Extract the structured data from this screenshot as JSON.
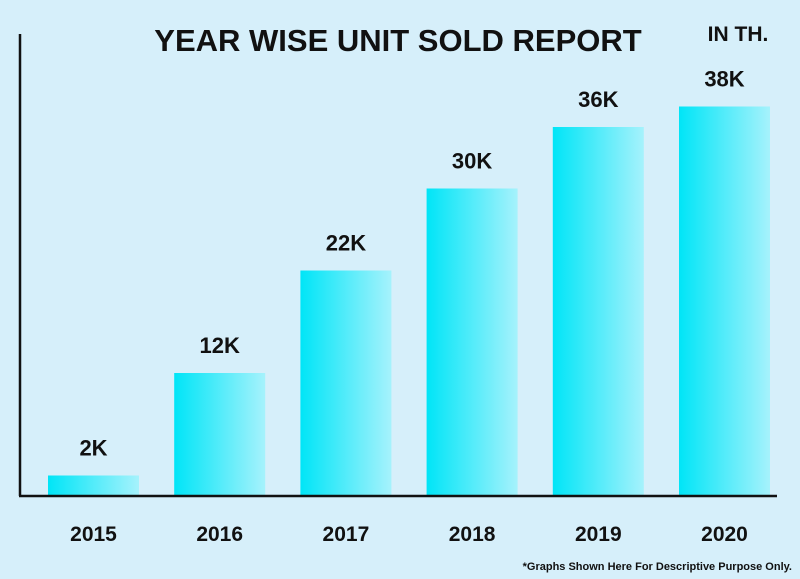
{
  "chart_data": {
    "type": "bar",
    "title": "YEAR WISE UNIT SOLD REPORT",
    "unit_label": "IN TH.",
    "categories": [
      "2015",
      "2016",
      "2017",
      "2018",
      "2019",
      "2020"
    ],
    "values": [
      2,
      12,
      22,
      30,
      36,
      38
    ],
    "data_labels": [
      "2K",
      "12K",
      "22K",
      "30K",
      "36K",
      "38K"
    ],
    "xlabel": "",
    "ylabel": "",
    "ylim": [
      0,
      40
    ],
    "grid": false,
    "bar_color_start": "#00e5f7",
    "bar_color_end": "#a6f2fc",
    "footnote": "*Graphs Shown Here For Descriptive Purpose Only."
  }
}
